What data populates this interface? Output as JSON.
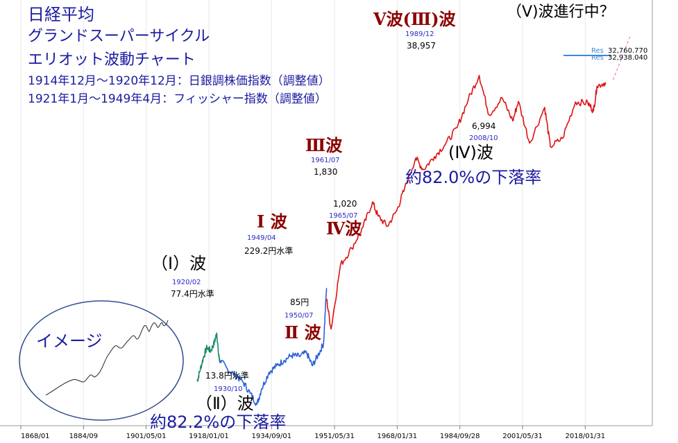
{
  "title": {
    "line1": "日経平均",
    "line2": "グランドスーパーサイクル",
    "line3": "エリオット波動チャート",
    "line4": "1914年12月～1920年12月：日銀調株価指数（調整値）",
    "line5": "1921年1月～1949年4月：フィッシャー指数（調整値）"
  },
  "colors": {
    "green": "#1b8a6b",
    "blue": "#2a5fd6",
    "red": "#dd1111",
    "navy": "#1a1aa0",
    "label_blue": "#2828c0",
    "dark_red": "#8b0000",
    "grid": "#e8e8e8"
  },
  "axis": {
    "x_ticks": [
      "1868/01",
      "1884/09",
      "1901/05/01",
      "1918/01/01",
      "1934/09/01",
      "1951/05/31",
      "1968/01/31",
      "1984/09/28",
      "2001/05/31",
      "2018/01/31"
    ],
    "legend_values": [
      "32,760.770",
      "32,938.040"
    ],
    "legend_labels": [
      "Res",
      "Res"
    ]
  },
  "annotations": {
    "wave_I_paren": "（Ⅰ）波",
    "wave_II_paren": "（Ⅱ）波",
    "wave_II_decline": "約82.2%の下落率",
    "wave_big_I": "Ⅰ 波",
    "wave_big_II": "Ⅱ 波",
    "wave_big_III": "Ⅲ波",
    "wave_big_IV": "Ⅳ波",
    "wave_big_V": "Ⅴ波(Ⅲ)波",
    "wave_IV_paren": "(Ⅳ)波",
    "wave_IV_decline": "約82.0%の下落率",
    "wave_V_progress": "（Ⅴ)波進行中？",
    "image_label": "イメージ",
    "d_1920_02": "1920/02",
    "v_1920_02": "77.4円水準",
    "d_1930_10": "1930/10",
    "v_1930_10": "13.8円水準",
    "d_1949_04": "1949/04",
    "v_1949_04": "229.2円水準",
    "d_1950_07": "1950/07",
    "v_1950_07": "85円",
    "d_1961_07": "1961/07",
    "v_1961_07": "1,830",
    "d_1965_07": "1965/07",
    "v_1965_07": "1,020",
    "d_1989_12": "1989/12",
    "v_1989_12": "38,957",
    "d_2008_10": "2008/10",
    "v_2008_10": "6,994"
  },
  "chart_data": {
    "type": "line",
    "title": "日経平均 グランドスーパーサイクル エリオット波動チャート",
    "y_scale": "log",
    "x_range": [
      1868,
      2035
    ],
    "series": [
      {
        "name": "",
        "color": "#1b8a6b",
        "points": [
          [
            1914.9,
            24
          ],
          [
            1915.5,
            30
          ],
          [
            1916.5,
            42
          ],
          [
            1917.5,
            55
          ],
          [
            1918.5,
            50
          ],
          [
            1919.5,
            62
          ],
          [
            1920.1,
            77.4
          ],
          [
            1920.6,
            45
          ],
          [
            1920.9,
            40
          ]
        ]
      },
      {
        "name": "",
        "color": "#2a5fd6",
        "points": [
          [
            1921.0,
            40
          ],
          [
            1923.0,
            32
          ],
          [
            1925.0,
            28
          ],
          [
            1927.0,
            24
          ],
          [
            1929.0,
            18
          ],
          [
            1930.8,
            13.8
          ],
          [
            1932.0,
            20
          ],
          [
            1934.0,
            30
          ],
          [
            1936.0,
            35
          ],
          [
            1938.0,
            40
          ],
          [
            1940.0,
            45
          ],
          [
            1942.0,
            44
          ],
          [
            1944.0,
            48
          ],
          [
            1945.5,
            35
          ],
          [
            1947.0,
            45
          ],
          [
            1948.5,
            60
          ],
          [
            1949.3,
            229.2
          ]
        ]
      },
      {
        "name": "",
        "color": "#dd1111",
        "points": [
          [
            1949.3,
            176
          ],
          [
            1950.5,
            85
          ],
          [
            1953.0,
            400
          ],
          [
            1956.0,
            600
          ],
          [
            1959.0,
            1000
          ],
          [
            1961.5,
            1830
          ],
          [
            1963.0,
            1300
          ],
          [
            1965.5,
            1020
          ],
          [
            1968.0,
            1500
          ],
          [
            1970.0,
            2500
          ],
          [
            1973.0,
            5300
          ],
          [
            1975.0,
            4000
          ],
          [
            1978.0,
            5500
          ],
          [
            1981.0,
            7500
          ],
          [
            1984.0,
            11000
          ],
          [
            1987.0,
            22000
          ],
          [
            1989.9,
            38957
          ],
          [
            1992.5,
            15000
          ],
          [
            1996.0,
            22600
          ],
          [
            1998.8,
            13000
          ],
          [
            2000.3,
            20800
          ],
          [
            2003.3,
            7600
          ],
          [
            2007.3,
            18000
          ],
          [
            2008.8,
            6994
          ],
          [
            2012.0,
            8500
          ],
          [
            2015.5,
            20500
          ],
          [
            2018.8,
            20000
          ],
          [
            2020.3,
            16500
          ],
          [
            2021.2,
            30000
          ],
          [
            2023.5,
            33000
          ]
        ]
      },
      {
        "name": "",
        "color": "#ee66bb",
        "points": [
          [
            2025.5,
            35000
          ],
          [
            2030.0,
            100000
          ]
        ]
      }
    ],
    "x_tick_labels": [
      "1868/01",
      "1884/09",
      "1901/05/01",
      "1918/01/01",
      "1934/09/01",
      "1951/05/31",
      "1968/01/31",
      "1984/09/28",
      "2001/05/31",
      "2018/01/31"
    ],
    "points_of_note": [
      {
        "date": "1920/02",
        "value": 77.4
      },
      {
        "date": "1930/10",
        "value": 13.8
      },
      {
        "date": "1949/04",
        "value": 229.2
      },
      {
        "date": "1950/07",
        "value": 85
      },
      {
        "date": "1961/07",
        "value": 1830
      },
      {
        "date": "1965/07",
        "value": 1020
      },
      {
        "date": "1989/12",
        "value": 38957
      },
      {
        "date": "2008/10",
        "value": 6994
      }
    ],
    "grid": true
  }
}
